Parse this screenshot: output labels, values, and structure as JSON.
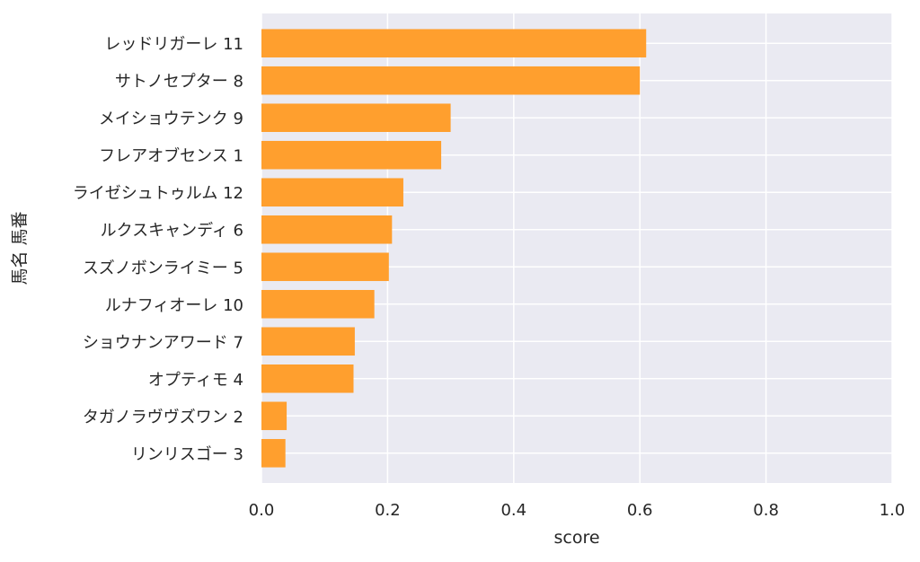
{
  "chart_data": {
    "type": "bar",
    "orientation": "horizontal",
    "title": "",
    "xlabel": "score",
    "ylabel": "馬名 馬番",
    "xlim": [
      0,
      1.0
    ],
    "x_ticks": [
      "0.0",
      "0.2",
      "0.4",
      "0.6",
      "0.8",
      "1.0"
    ],
    "grid": true,
    "bar_color": "#ff9f2e",
    "background_color": "#eaeaf2",
    "categories": [
      "レッドリガーレ 11",
      "サトノセプター 8",
      "メイショウテンク 9",
      "フレアオブセンス 1",
      "ライゼシュトゥルム 12",
      "ルクスキャンディ 6",
      "スズノボンライミー 5",
      "ルナフィオーレ 10",
      "ショウナンアワード 7",
      "オプティモ 4",
      "タガノラヴヴズワン 2",
      "リンリスゴー 3"
    ],
    "values": [
      0.61,
      0.6,
      0.3,
      0.285,
      0.225,
      0.207,
      0.202,
      0.179,
      0.148,
      0.146,
      0.04,
      0.038
    ]
  }
}
